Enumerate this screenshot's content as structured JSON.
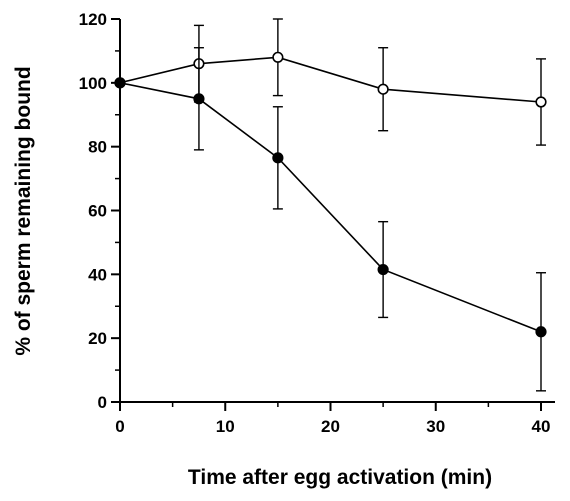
{
  "chart_data": {
    "type": "line",
    "title": "",
    "xlabel": "Time after egg activation (min)",
    "ylabel": "% of sperm remaining bound",
    "xlim": [
      0,
      40
    ],
    "ylim": [
      0,
      120
    ],
    "xticks": [
      0,
      10,
      20,
      30,
      40
    ],
    "yticks": [
      0,
      20,
      40,
      60,
      80,
      100,
      120
    ],
    "grid": false,
    "legend": "none",
    "series": [
      {
        "marker": "open-circle",
        "x": [
          0,
          7.5,
          15,
          25,
          40
        ],
        "y": [
          100,
          106,
          108,
          98,
          94
        ],
        "err": [
          0,
          12,
          12,
          13,
          13.5
        ]
      },
      {
        "marker": "filled-circle",
        "x": [
          0,
          7.5,
          15,
          25,
          40
        ],
        "y": [
          100,
          95,
          76.5,
          41.5,
          22
        ],
        "err": [
          0,
          16,
          16,
          15,
          18.5
        ]
      }
    ]
  }
}
